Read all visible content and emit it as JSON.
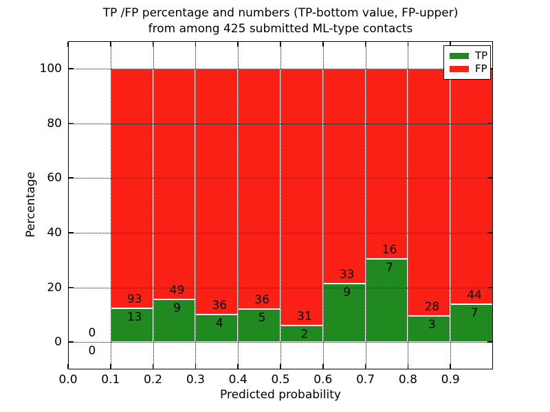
{
  "chart_data": {
    "type": "bar",
    "stacked": true,
    "title_line1": "TP /FP percentage and numbers (TP-bottom value, FP-upper)",
    "title_line2": "from among 425 submitted ML-type contacts",
    "xlabel": "Predicted probability",
    "ylabel": "Percentage",
    "xlim": [
      0.0,
      1.0
    ],
    "ylim": [
      -10,
      110
    ],
    "x_tick_values": [
      0.0,
      0.1,
      0.2,
      0.3,
      0.4,
      0.5,
      0.6,
      0.7,
      0.8,
      0.9
    ],
    "x_tick_labels": [
      "0.0",
      "0.1",
      "0.2",
      "0.3",
      "0.4",
      "0.5",
      "0.6",
      "0.7",
      "0.8",
      "0.9"
    ],
    "y_tick_values": [
      0,
      20,
      40,
      60,
      80,
      100
    ],
    "y_tick_labels": [
      "0",
      "20",
      "40",
      "60",
      "80",
      "100"
    ],
    "grid": {
      "style": "dotted",
      "color": "#000000",
      "on_top": true
    },
    "total_submitted": 425,
    "colors": {
      "tp": "#208a20",
      "fp": "#fb2015"
    },
    "legend": {
      "position": "upper-right",
      "entries": [
        {
          "name": "TP",
          "color": "#208a20"
        },
        {
          "name": "FP",
          "color": "#fb2015"
        }
      ]
    },
    "bins": [
      {
        "range": [
          0.0,
          0.1
        ],
        "tp_count": 0,
        "fp_count": 0
      },
      {
        "range": [
          0.1,
          0.2
        ],
        "tp_count": 13,
        "fp_count": 93
      },
      {
        "range": [
          0.2,
          0.3
        ],
        "tp_count": 9,
        "fp_count": 49
      },
      {
        "range": [
          0.3,
          0.4
        ],
        "tp_count": 4,
        "fp_count": 36
      },
      {
        "range": [
          0.4,
          0.5
        ],
        "tp_count": 5,
        "fp_count": 36
      },
      {
        "range": [
          0.5,
          0.6
        ],
        "tp_count": 2,
        "fp_count": 31
      },
      {
        "range": [
          0.6,
          0.7
        ],
        "tp_count": 9,
        "fp_count": 33
      },
      {
        "range": [
          0.7,
          0.8
        ],
        "tp_count": 7,
        "fp_count": 16
      },
      {
        "range": [
          0.8,
          0.9
        ],
        "tp_count": 3,
        "fp_count": 28
      },
      {
        "range": [
          0.9,
          1.0
        ],
        "tp_count": 7,
        "fp_count": 44
      }
    ]
  }
}
